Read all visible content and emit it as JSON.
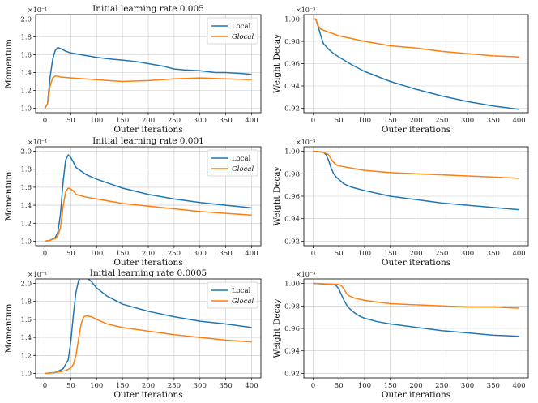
{
  "colors": {
    "local": "#1f77b4",
    "glocal": "#ff7f0e"
  },
  "chart_data": [
    {
      "type": "line",
      "title": "Initial learning rate 0.005",
      "xlabel": "Outer iterations",
      "ylabel": "Momentum",
      "scale_label": "×10⁻¹",
      "xlim": [
        0,
        400
      ],
      "ylim": [
        1.0,
        2.0
      ],
      "xticks": [
        0,
        50,
        100,
        150,
        200,
        250,
        300,
        350,
        400
      ],
      "yticks": [
        1.0,
        1.2,
        1.4,
        1.6,
        1.8,
        2.0
      ],
      "ytick_labels": [
        "1.0",
        "1.2",
        "1.4",
        "1.6",
        "1.8",
        "2.0"
      ],
      "grid": true,
      "legend": "top-right",
      "series": [
        {
          "name": "Local",
          "x": [
            0,
            5,
            10,
            15,
            20,
            25,
            30,
            40,
            50,
            70,
            100,
            130,
            150,
            180,
            200,
            230,
            250,
            270,
            300,
            330,
            350,
            380,
            400
          ],
          "values": [
            1.0,
            1.05,
            1.35,
            1.55,
            1.65,
            1.68,
            1.67,
            1.64,
            1.62,
            1.6,
            1.57,
            1.55,
            1.54,
            1.52,
            1.5,
            1.47,
            1.44,
            1.43,
            1.42,
            1.4,
            1.4,
            1.39,
            1.38
          ]
        },
        {
          "name": "Glocal",
          "x": [
            0,
            5,
            10,
            15,
            20,
            25,
            30,
            50,
            100,
            150,
            200,
            250,
            300,
            350,
            400
          ],
          "values": [
            1.0,
            1.05,
            1.25,
            1.34,
            1.36,
            1.36,
            1.35,
            1.34,
            1.32,
            1.3,
            1.31,
            1.33,
            1.34,
            1.33,
            1.32
          ]
        }
      ]
    },
    {
      "type": "line",
      "title": "",
      "xlabel": "Outer iterations",
      "ylabel": "Weight Decay",
      "scale_label": "×10⁻³",
      "xlim": [
        0,
        400
      ],
      "ylim": [
        0.92,
        1.0
      ],
      "xticks": [
        0,
        50,
        100,
        150,
        200,
        250,
        300,
        350,
        400
      ],
      "yticks": [
        0.92,
        0.94,
        0.96,
        0.98,
        1.0
      ],
      "ytick_labels": [
        "0.92",
        "0.94",
        "0.96",
        "0.98",
        "1.00"
      ],
      "grid": true,
      "legend": "",
      "series": [
        {
          "name": "Local",
          "x": [
            0,
            5,
            10,
            15,
            20,
            30,
            40,
            50,
            75,
            100,
            150,
            200,
            250,
            300,
            350,
            400
          ],
          "values": [
            1.0,
            1.0,
            0.993,
            0.985,
            0.978,
            0.973,
            0.969,
            0.966,
            0.959,
            0.953,
            0.944,
            0.937,
            0.931,
            0.926,
            0.922,
            0.919
          ]
        },
        {
          "name": "Glocal",
          "x": [
            0,
            5,
            10,
            15,
            20,
            50,
            100,
            150,
            200,
            250,
            300,
            350,
            400
          ],
          "values": [
            1.0,
            1.0,
            0.994,
            0.991,
            0.99,
            0.985,
            0.98,
            0.976,
            0.974,
            0.971,
            0.969,
            0.967,
            0.966
          ]
        }
      ]
    },
    {
      "type": "line",
      "title": "Initial learning rate 0.001",
      "xlabel": "Outer iterations",
      "ylabel": "Momentum",
      "scale_label": "×10⁻¹",
      "xlim": [
        0,
        400
      ],
      "ylim": [
        1.0,
        2.0
      ],
      "xticks": [
        0,
        50,
        100,
        150,
        200,
        250,
        300,
        350,
        400
      ],
      "yticks": [
        1.0,
        1.2,
        1.4,
        1.6,
        1.8,
        2.0
      ],
      "ytick_labels": [
        "1.0",
        "1.2",
        "1.4",
        "1.6",
        "1.8",
        "2.0"
      ],
      "grid": true,
      "legend": "top-right",
      "series": [
        {
          "name": "Local",
          "x": [
            0,
            10,
            20,
            25,
            30,
            35,
            40,
            45,
            50,
            55,
            60,
            70,
            80,
            100,
            130,
            150,
            200,
            250,
            300,
            350,
            400
          ],
          "values": [
            1.0,
            1.01,
            1.04,
            1.1,
            1.3,
            1.65,
            1.9,
            1.96,
            1.93,
            1.88,
            1.82,
            1.78,
            1.74,
            1.69,
            1.63,
            1.59,
            1.52,
            1.47,
            1.43,
            1.4,
            1.37
          ]
        },
        {
          "name": "Glocal",
          "x": [
            0,
            10,
            20,
            25,
            30,
            35,
            40,
            45,
            50,
            55,
            60,
            80,
            100,
            150,
            200,
            250,
            300,
            350,
            400
          ],
          "values": [
            1.0,
            1.01,
            1.03,
            1.06,
            1.15,
            1.38,
            1.55,
            1.59,
            1.58,
            1.56,
            1.52,
            1.49,
            1.47,
            1.42,
            1.39,
            1.36,
            1.33,
            1.31,
            1.29
          ]
        }
      ]
    },
    {
      "type": "line",
      "title": "",
      "xlabel": "Outer iterations",
      "ylabel": "Weight Decay",
      "scale_label": "×10⁻³",
      "xlim": [
        0,
        400
      ],
      "ylim": [
        0.92,
        1.0
      ],
      "xticks": [
        0,
        50,
        100,
        150,
        200,
        250,
        300,
        350,
        400
      ],
      "yticks": [
        0.92,
        0.94,
        0.96,
        0.98,
        1.0
      ],
      "ytick_labels": [
        "0.92",
        "0.94",
        "0.96",
        "0.98",
        "1.00"
      ],
      "grid": true,
      "legend": "",
      "series": [
        {
          "name": "Local",
          "x": [
            0,
            20,
            25,
            30,
            35,
            40,
            45,
            50,
            60,
            75,
            100,
            150,
            200,
            250,
            300,
            350,
            400
          ],
          "values": [
            1.0,
            0.999,
            0.997,
            0.992,
            0.985,
            0.98,
            0.977,
            0.975,
            0.971,
            0.968,
            0.965,
            0.96,
            0.957,
            0.954,
            0.952,
            0.95,
            0.948
          ]
        },
        {
          "name": "Glocal",
          "x": [
            0,
            20,
            30,
            35,
            40,
            45,
            50,
            75,
            100,
            150,
            200,
            250,
            300,
            350,
            400
          ],
          "values": [
            1.0,
            0.999,
            0.997,
            0.993,
            0.99,
            0.988,
            0.987,
            0.985,
            0.983,
            0.981,
            0.98,
            0.979,
            0.978,
            0.977,
            0.976
          ]
        }
      ]
    },
    {
      "type": "line",
      "title": "Initial learning rate 0.0005",
      "xlabel": "Outer iterations",
      "ylabel": "Momentum",
      "scale_label": "×10⁻¹",
      "xlim": [
        0,
        400
      ],
      "ylim": [
        1.0,
        2.0
      ],
      "xticks": [
        0,
        50,
        100,
        150,
        200,
        250,
        300,
        350,
        400
      ],
      "yticks": [
        1.0,
        1.2,
        1.4,
        1.6,
        1.8,
        2.0
      ],
      "ytick_labels": [
        "1.0",
        "1.2",
        "1.4",
        "1.6",
        "1.8",
        "2.0"
      ],
      "grid": true,
      "legend": "top-right",
      "series": [
        {
          "name": "Local",
          "x": [
            0,
            20,
            35,
            45,
            50,
            55,
            60,
            65,
            70,
            75,
            80,
            90,
            100,
            120,
            150,
            200,
            250,
            300,
            350,
            400
          ],
          "values": [
            1.0,
            1.01,
            1.05,
            1.15,
            1.35,
            1.65,
            1.9,
            2.03,
            2.07,
            2.08,
            2.07,
            2.02,
            1.95,
            1.86,
            1.77,
            1.69,
            1.63,
            1.58,
            1.55,
            1.51
          ]
        },
        {
          "name": "Glocal",
          "x": [
            0,
            20,
            40,
            50,
            55,
            60,
            65,
            70,
            75,
            80,
            90,
            100,
            120,
            150,
            200,
            250,
            300,
            350,
            400
          ],
          "values": [
            1.0,
            1.01,
            1.03,
            1.06,
            1.1,
            1.2,
            1.38,
            1.55,
            1.63,
            1.64,
            1.63,
            1.6,
            1.55,
            1.51,
            1.47,
            1.43,
            1.4,
            1.37,
            1.35
          ]
        }
      ]
    },
    {
      "type": "line",
      "title": "",
      "xlabel": "Outer iterations",
      "ylabel": "Weight Decay",
      "scale_label": "×10⁻³",
      "xlim": [
        0,
        400
      ],
      "ylim": [
        0.92,
        1.0
      ],
      "xticks": [
        0,
        50,
        100,
        150,
        200,
        250,
        300,
        350,
        400
      ],
      "yticks": [
        0.92,
        0.94,
        0.96,
        0.98,
        1.0
      ],
      "ytick_labels": [
        "0.92",
        "0.94",
        "0.96",
        "0.98",
        "1.00"
      ],
      "grid": true,
      "legend": "",
      "series": [
        {
          "name": "Local",
          "x": [
            0,
            40,
            45,
            50,
            55,
            60,
            65,
            70,
            75,
            80,
            90,
            100,
            125,
            150,
            200,
            250,
            300,
            350,
            400
          ],
          "values": [
            1.0,
            0.999,
            0.998,
            0.995,
            0.99,
            0.985,
            0.981,
            0.978,
            0.976,
            0.974,
            0.971,
            0.969,
            0.966,
            0.964,
            0.961,
            0.958,
            0.956,
            0.954,
            0.953
          ]
        },
        {
          "name": "Glocal",
          "x": [
            0,
            50,
            55,
            60,
            65,
            70,
            75,
            80,
            90,
            100,
            150,
            200,
            250,
            300,
            350,
            400
          ],
          "values": [
            1.0,
            0.999,
            0.998,
            0.995,
            0.991,
            0.989,
            0.988,
            0.987,
            0.986,
            0.985,
            0.982,
            0.981,
            0.98,
            0.979,
            0.979,
            0.978
          ]
        }
      ]
    }
  ]
}
